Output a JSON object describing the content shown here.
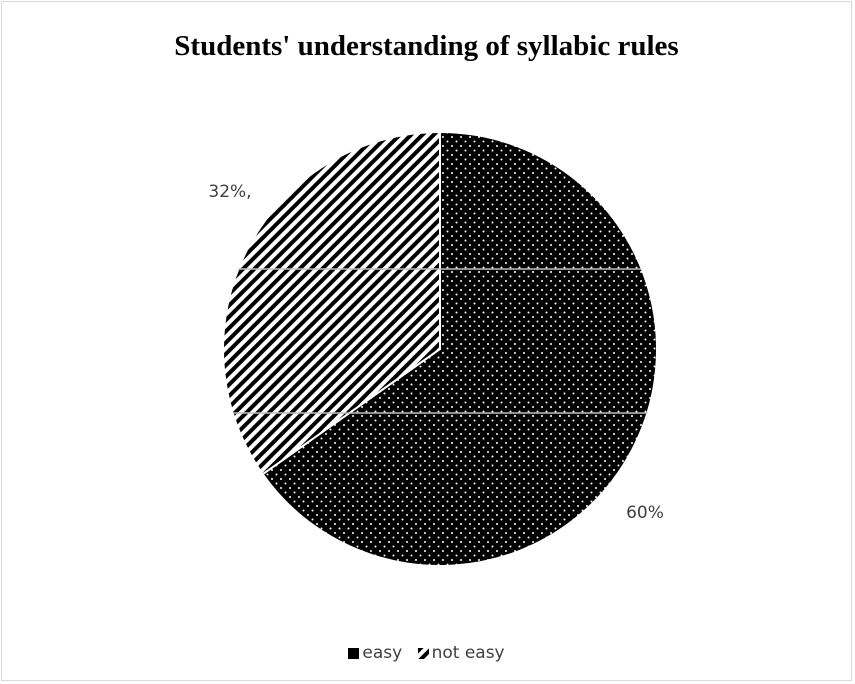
{
  "chart_data": {
    "type": "pie",
    "title": "Students' understanding of syllabic rules",
    "slices": [
      {
        "name": "easy",
        "value": 60,
        "label": "60%",
        "pattern": "dots",
        "color": "#000000"
      },
      {
        "name": "not easy",
        "value": 32,
        "label": "32%,",
        "pattern": "diagonal-stripes",
        "color": "#000000"
      }
    ],
    "legend": {
      "position": "bottom"
    }
  }
}
